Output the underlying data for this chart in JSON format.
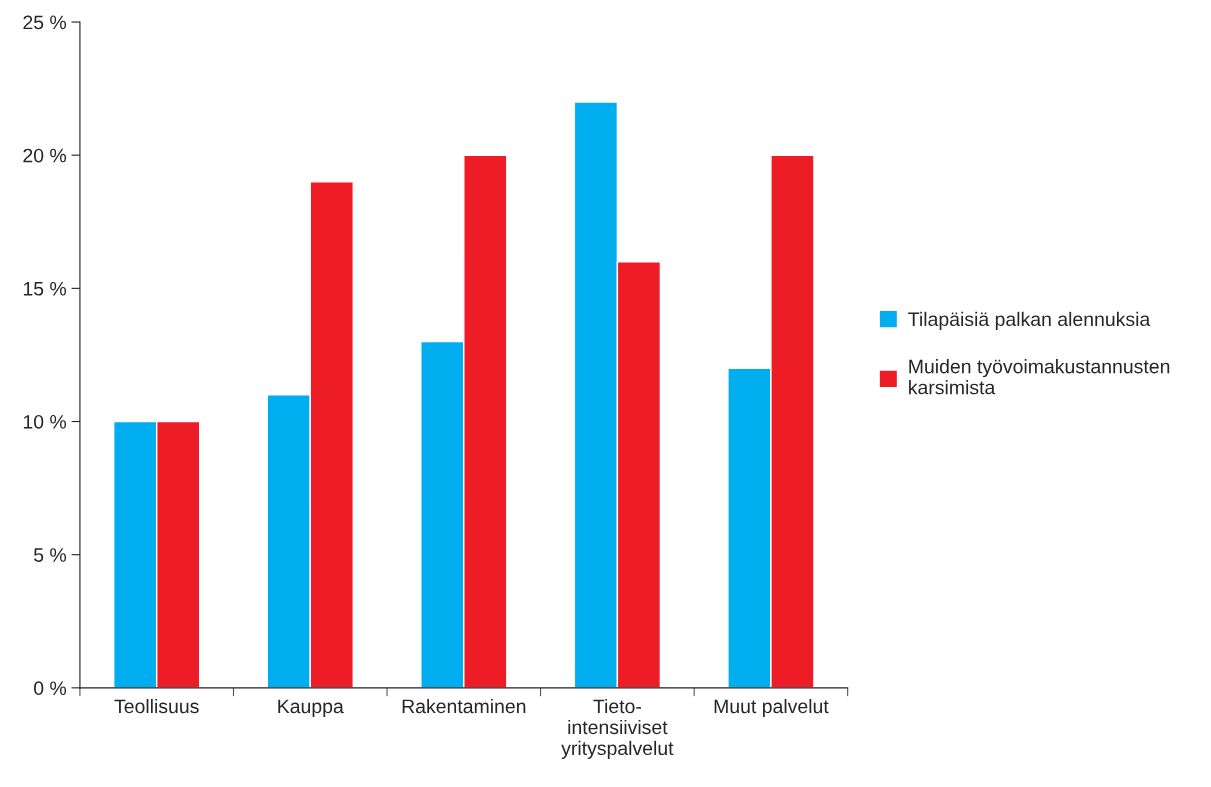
{
  "chart_data": {
    "type": "bar",
    "categories": [
      "Teollisuus",
      "Kauppa",
      "Rakentaminen",
      "Tieto-\nintensiiviset\nyrityspalvelut",
      "Muut palvelut"
    ],
    "series": [
      {
        "name": "Tilapäisiä palkan alennuksia",
        "color": "#00adef",
        "values": [
          10,
          11,
          13,
          22,
          12
        ]
      },
      {
        "name": "Muiden työvoimakustannusten\nkarsimista",
        "color": "#ee1c25",
        "values": [
          10,
          19,
          20,
          16,
          20
        ]
      }
    ],
    "ylim": [
      0,
      25
    ],
    "yticks": [
      {
        "value": 0,
        "label": "0 %"
      },
      {
        "value": 5,
        "label": "5 %"
      },
      {
        "value": 10,
        "label": "10 %"
      },
      {
        "value": 15,
        "label": "15 %"
      },
      {
        "value": 20,
        "label": "20 %"
      },
      {
        "value": 25,
        "label": "25 %"
      }
    ],
    "grid": false,
    "legend": "right"
  }
}
